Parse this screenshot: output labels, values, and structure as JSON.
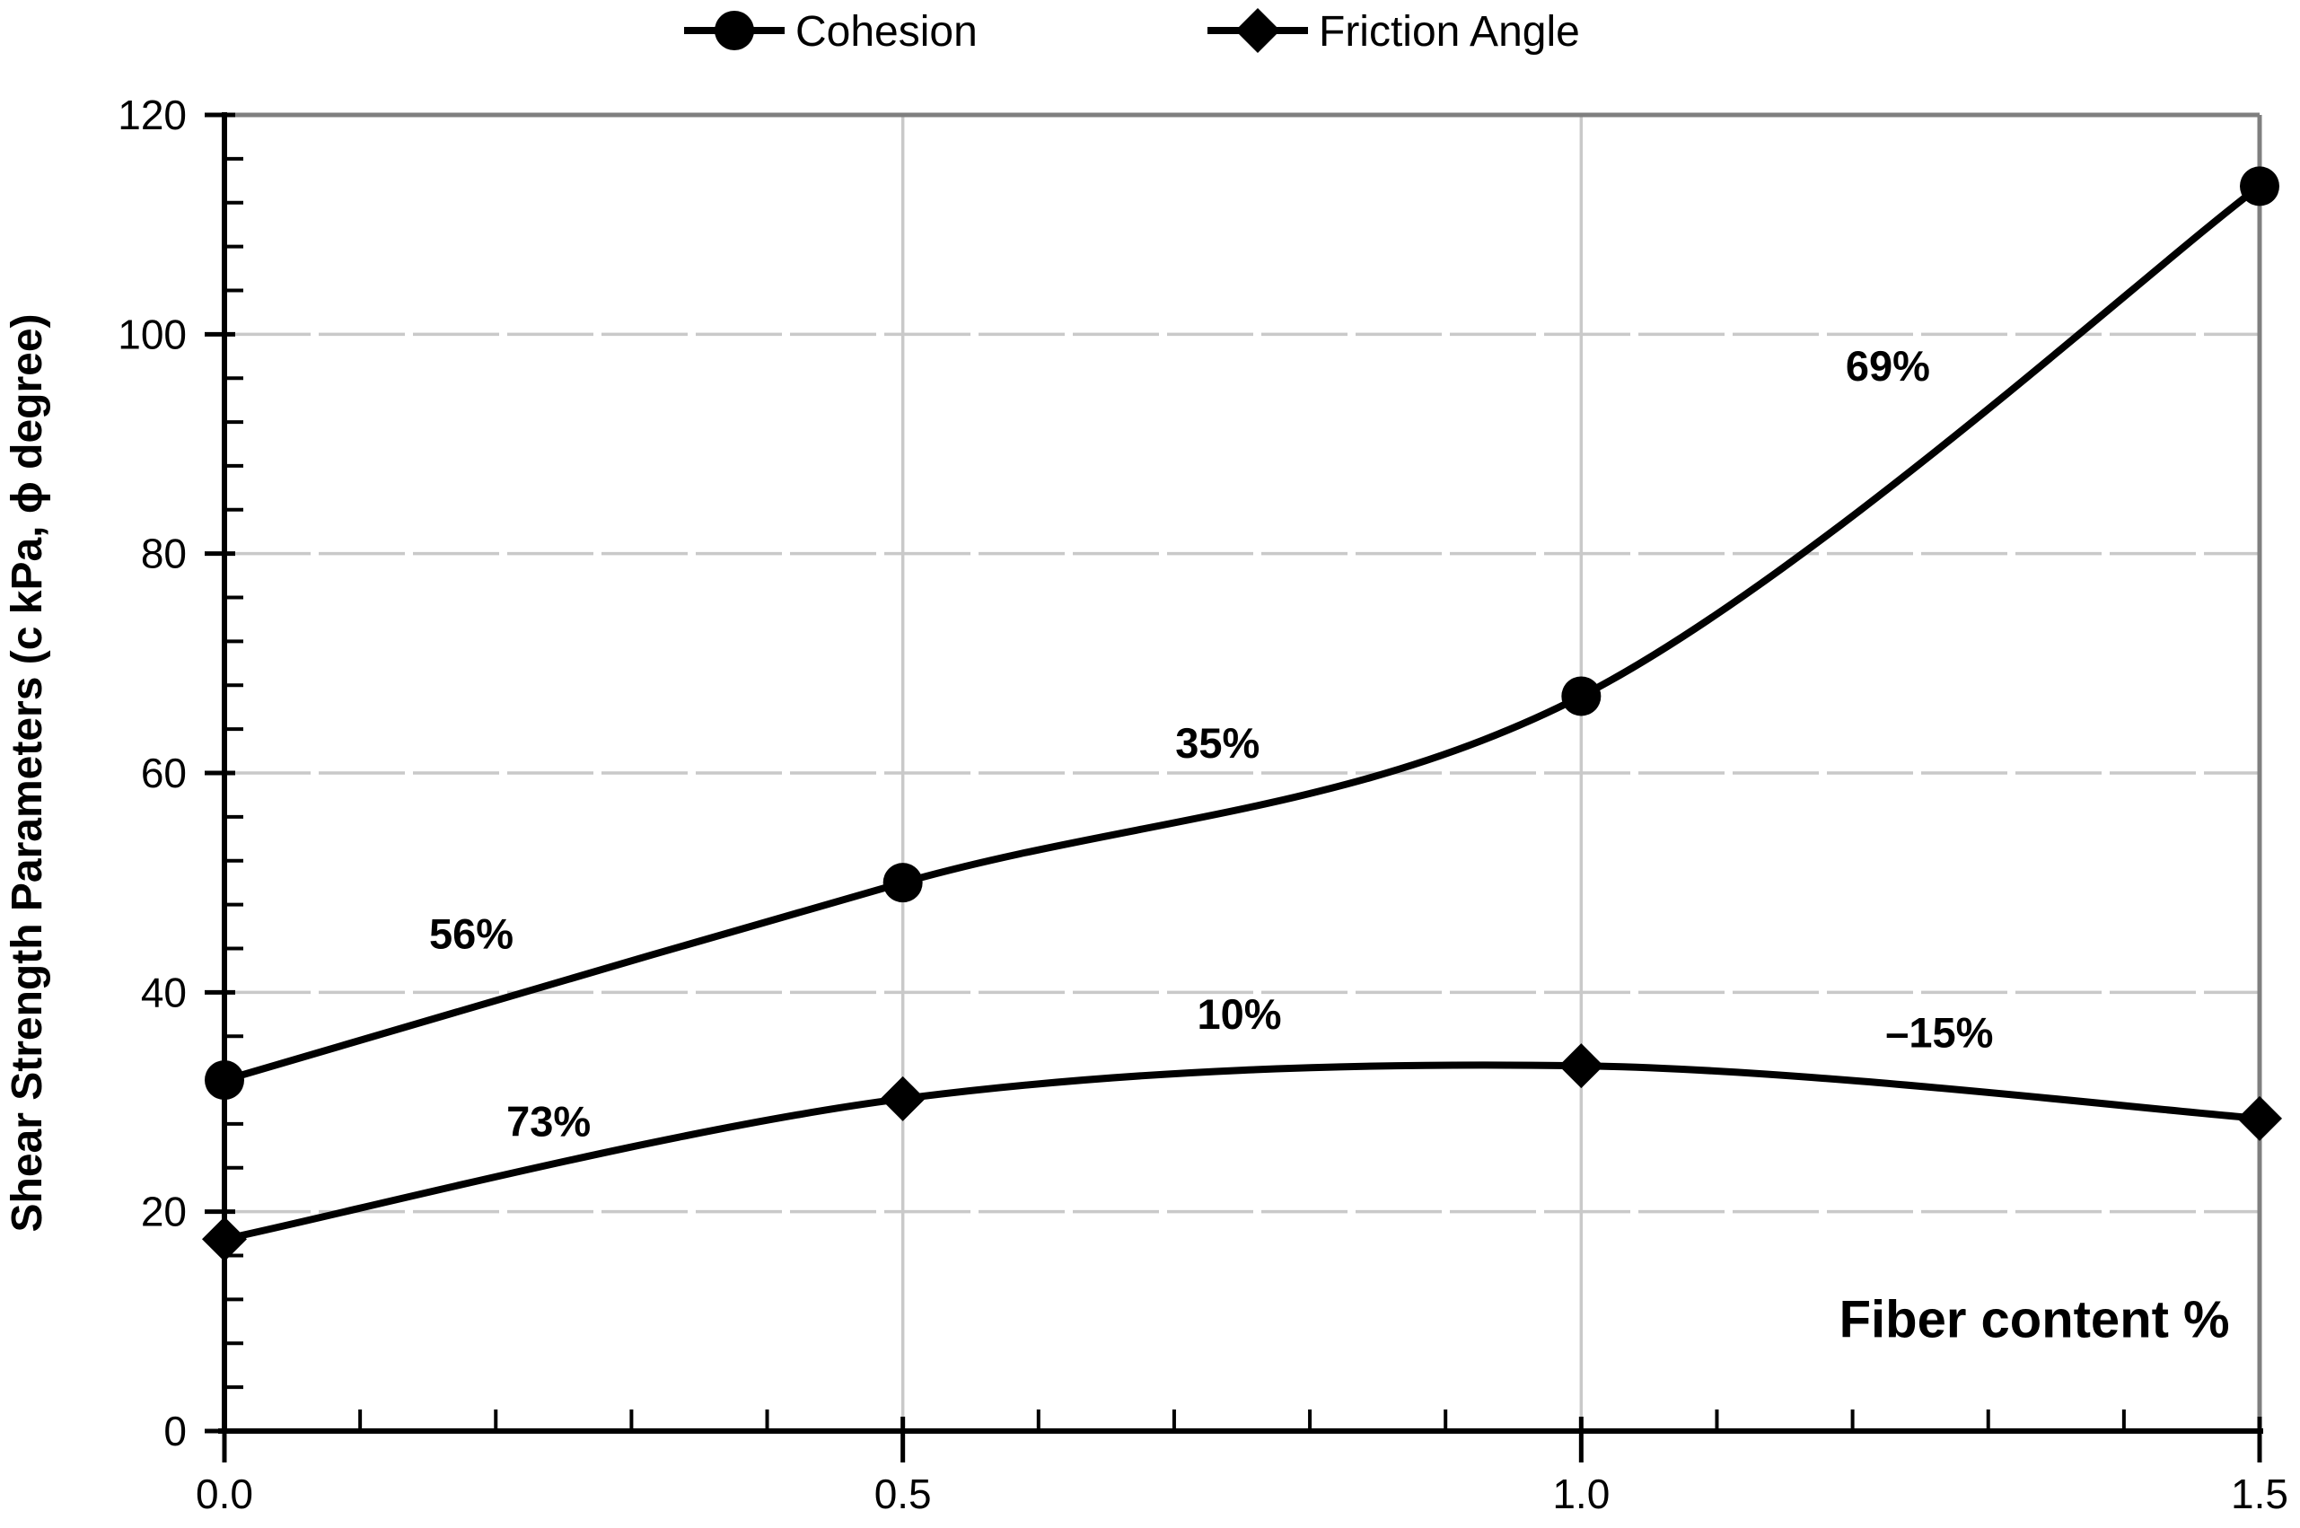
{
  "chart_data": {
    "type": "line",
    "title": "",
    "xlabel": "Fiber content %",
    "ylabel": "Shear Strength Parameters (c kPa, ϕ degree)",
    "x": [
      0.0,
      0.5,
      1.0,
      1.5
    ],
    "xlim": [
      0,
      1.5
    ],
    "ylim": [
      0,
      120
    ],
    "x_tick_values": [
      0,
      0.5,
      1.0,
      1.5
    ],
    "x_tick_labels": [
      "0.0",
      "0.5",
      "1.0",
      "1.5"
    ],
    "y_tick_values": [
      0,
      20,
      40,
      60,
      80,
      100,
      120
    ],
    "y_tick_labels": [
      "0",
      "20",
      "40",
      "60",
      "80",
      "100",
      "120"
    ],
    "x_minor_tick_step": 0.1,
    "y_minor_tick_step": 4,
    "grid": "horizontal gridlines dashed light gray; vertical gridlines solid light gray; top and right plot borders solid gray",
    "legend_position": "top-center",
    "series": [
      {
        "name": "Cohesion",
        "marker": "circle",
        "color": "#000000",
        "values": [
          32,
          50,
          67,
          113.5
        ]
      },
      {
        "name": "Friction Angle",
        "marker": "diamond",
        "color": "#000000",
        "values": [
          17.5,
          30.3,
          33.3,
          28.5
        ]
      }
    ],
    "annotations": [
      {
        "text": "56%",
        "x": 0.182,
        "y": 45.3
      },
      {
        "text": "73%",
        "x": 0.239,
        "y": 28.2
      },
      {
        "text": "35%",
        "x": 0.732,
        "y": 62.7
      },
      {
        "text": "10%",
        "x": 0.748,
        "y": 38.0
      },
      {
        "text": "69%",
        "x": 1.226,
        "y": 97.1
      },
      {
        "text": "–15%",
        "x": 1.264,
        "y": 36.3
      }
    ],
    "xlabel_position": {
      "x": 1.334,
      "y": 10.2
    },
    "colors": {
      "series": "#000000",
      "gridline": "#c9c9c9",
      "border": "#7f7f7f",
      "axis": "#000000",
      "text": "#000000",
      "background": "#ffffff"
    }
  },
  "legend": {
    "items": [
      {
        "label": "Cohesion",
        "marker": "circle"
      },
      {
        "label": "Friction Angle",
        "marker": "diamond"
      }
    ]
  }
}
